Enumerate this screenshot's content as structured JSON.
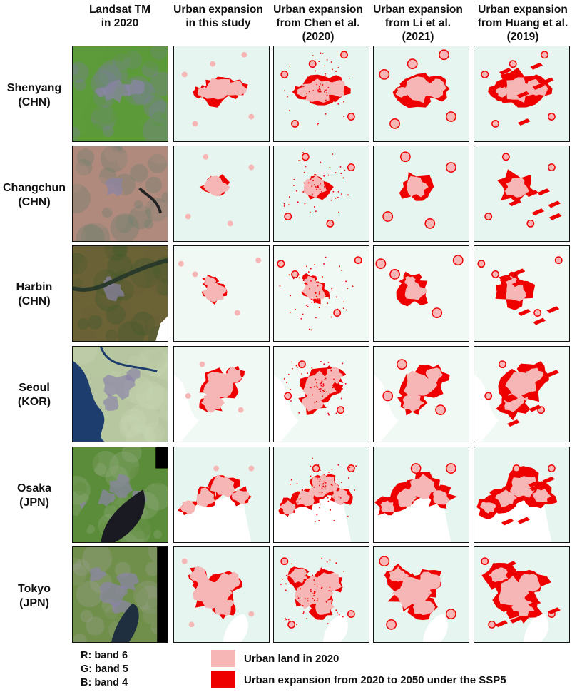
{
  "columns": [
    "Landsat TM\nin 2020",
    "Urban expansion\nin this study",
    "Urban expansion\nfrom Chen et al.\n(2020)",
    "Urban expansion\nfrom Li et al.\n(2021)",
    "Urban expansion\nfrom Huang et al.\n(2019)"
  ],
  "rows": [
    "Shenyang\n(CHN)",
    "Changchun\n(CHN)",
    "Harbin\n(CHN)",
    "Seoul\n(KOR)",
    "Osaka\n(JPN)",
    "Tokyo\n(JPN)"
  ],
  "bands": [
    "R: band 6",
    "G: band 5",
    "B: band 4"
  ],
  "legend": {
    "urban_2020": "Urban land in 2020",
    "expansion": "Urban expansion from 2020 to 2050 under the SSP5"
  },
  "colors": {
    "urban_2020": "#f7b6b6",
    "expansion": "#ee0000",
    "background_mint": "#e6f5ef",
    "border": "#111111"
  }
}
